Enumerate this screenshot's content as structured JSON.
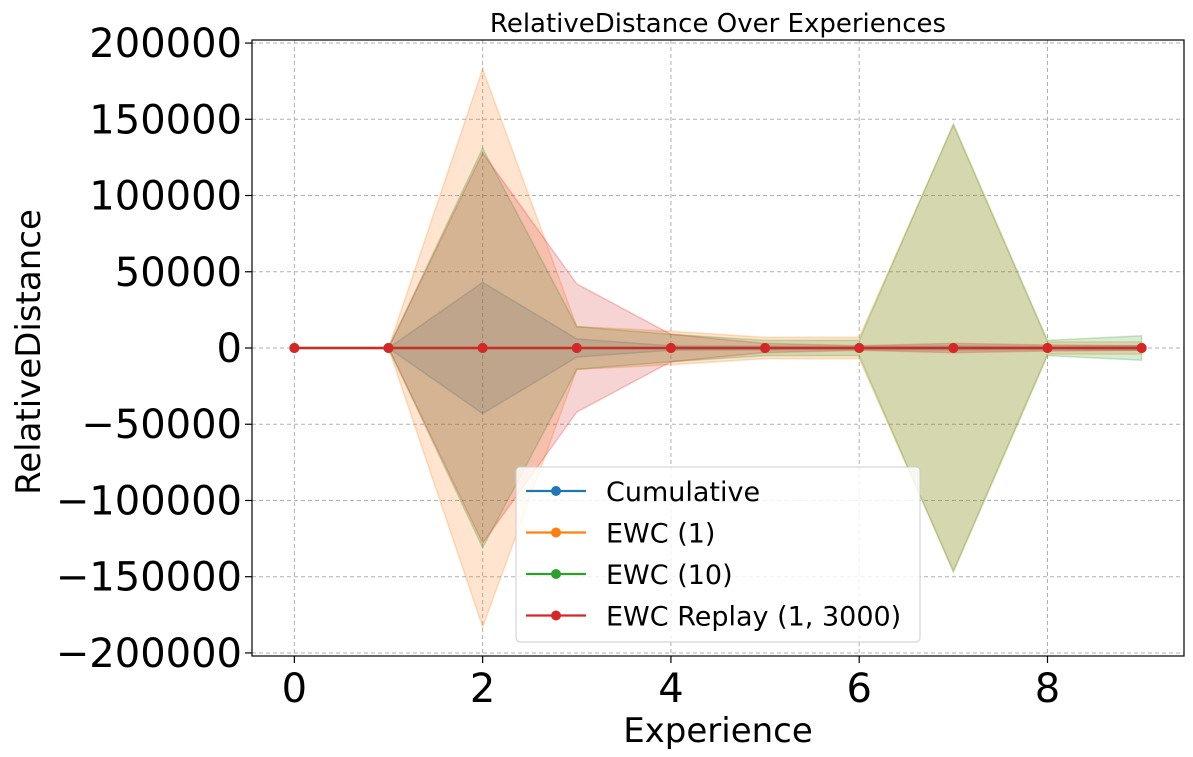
{
  "chart_data": {
    "type": "line",
    "title": "RelativeDistance Over Experiences",
    "xlabel": "Experience",
    "ylabel": "RelativeDistance",
    "xlim": [
      -0.45,
      9.45
    ],
    "ylim": [
      -202000,
      202000
    ],
    "xticks": [
      0,
      2,
      4,
      6,
      8
    ],
    "xtick_labels": [
      "0",
      "2",
      "4",
      "6",
      "8"
    ],
    "yticks": [
      200000,
      150000,
      100000,
      50000,
      0,
      -50000,
      -100000,
      -150000,
      -200000
    ],
    "ytick_labels": [
      "200000",
      "150000",
      "100000",
      "50000",
      "0",
      "−50000",
      "−100000",
      "−150000",
      "−200000"
    ],
    "grid": true,
    "legend_position": "lower-center",
    "x": [
      0,
      1,
      2,
      3,
      4,
      5,
      6,
      7,
      8,
      9
    ],
    "series": [
      {
        "name": "Cumulative",
        "color": "#1f77b4",
        "values": [
          0,
          0,
          0,
          0,
          0,
          0,
          0,
          0,
          0,
          0
        ],
        "band": [
          0,
          0,
          43000,
          6000,
          1500,
          1200,
          1000,
          1500,
          1000,
          1500
        ]
      },
      {
        "name": "EWC (1)",
        "color": "#ff7f0e",
        "values": [
          0,
          0,
          0,
          0,
          0,
          0,
          0,
          0,
          0,
          0
        ],
        "band": [
          0,
          0,
          183000,
          14000,
          11000,
          7000,
          7000,
          146000,
          4000,
          4000
        ]
      },
      {
        "name": "EWC (10)",
        "color": "#2ca02c",
        "values": [
          0,
          0,
          0,
          0,
          0,
          0,
          0,
          0,
          0,
          0
        ],
        "band": [
          0,
          0,
          131000,
          14000,
          9000,
          5000,
          5000,
          147000,
          5000,
          8000
        ]
      },
      {
        "name": "EWC Replay (1, 3000)",
        "color": "#d62728",
        "values": [
          0,
          0,
          0,
          0,
          0,
          0,
          0,
          0,
          0,
          0
        ],
        "band": [
          0,
          0,
          128000,
          42000,
          9000,
          3000,
          1500,
          3000,
          2000,
          1500
        ]
      }
    ]
  }
}
